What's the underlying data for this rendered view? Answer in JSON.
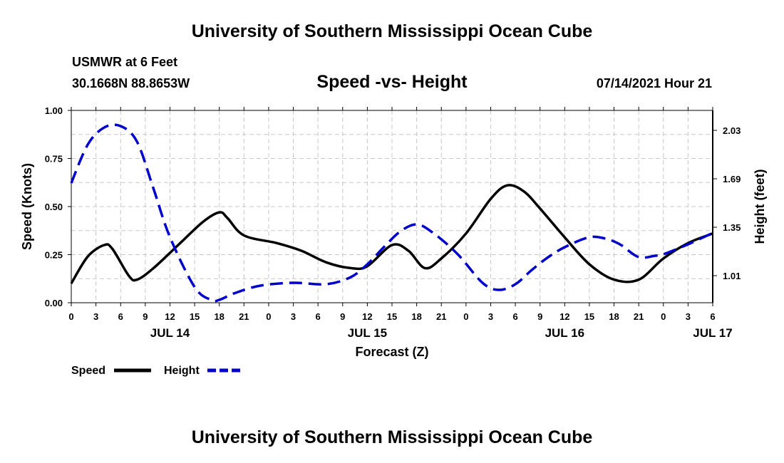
{
  "header": {
    "title": "University of Southern Mississippi Ocean Cube",
    "station": "USMWR at 6 Feet",
    "coords": "30.1668N  88.8653W",
    "subtitle": "Speed -vs- Height",
    "datetime": "07/14/2021 Hour 21"
  },
  "footer": {
    "title": "University of Southern Mississippi Ocean Cube"
  },
  "colors": {
    "speed": "#000000",
    "height": "#0000cc",
    "grid": "#c8c8c8"
  },
  "chart_data": {
    "type": "line",
    "title": "Speed -vs- Height",
    "xlabel": "Forecast (Z)",
    "ylabel": "Speed (Knots)",
    "y2label": "Height (feet)",
    "xlim": [
      0,
      78
    ],
    "ylim": [
      0,
      1
    ],
    "y2lim": [
      0.82,
      2.17
    ],
    "x_ticks": [
      0,
      3,
      6,
      9,
      12,
      15,
      18,
      21,
      24,
      27,
      30,
      33,
      36,
      39,
      42,
      45,
      48,
      51,
      54,
      57,
      60,
      63,
      66,
      69,
      72,
      75,
      78
    ],
    "x_tick_labels": [
      "0",
      "3",
      "6",
      "9",
      "12",
      "15",
      "18",
      "21",
      "0",
      "3",
      "6",
      "9",
      "12",
      "15",
      "18",
      "21",
      "0",
      "3",
      "6",
      "9",
      "12",
      "15",
      "18",
      "21",
      "0",
      "3",
      "6"
    ],
    "date_labels": [
      {
        "x": 12,
        "label": "JUL 14"
      },
      {
        "x": 36,
        "label": "JUL 15"
      },
      {
        "x": 60,
        "label": "JUL 16"
      },
      {
        "x": 78,
        "label": "JUL 17"
      }
    ],
    "y_ticks": [
      "0.00",
      "0.25",
      "0.50",
      "0.75",
      "1.00"
    ],
    "y2_ticks": [
      "1.01",
      "1.35",
      "1.69",
      "2.03"
    ],
    "series": [
      {
        "name": "Speed",
        "axis": "left",
        "style": "solid",
        "x": [
          0,
          2,
          4,
          5,
          7,
          8,
          10,
          13,
          16,
          18,
          19,
          21,
          25,
          28,
          31,
          34,
          36,
          39,
          41,
          43,
          45,
          48,
          51,
          53,
          55,
          57,
          60,
          63,
          66,
          69,
          72,
          75,
          78
        ],
        "values": [
          0.1,
          0.24,
          0.3,
          0.28,
          0.14,
          0.12,
          0.18,
          0.3,
          0.42,
          0.47,
          0.44,
          0.35,
          0.31,
          0.27,
          0.21,
          0.18,
          0.19,
          0.3,
          0.27,
          0.18,
          0.23,
          0.36,
          0.54,
          0.61,
          0.58,
          0.49,
          0.34,
          0.2,
          0.12,
          0.12,
          0.23,
          0.31,
          0.36
        ]
      },
      {
        "name": "Height",
        "axis": "right",
        "style": "dashed",
        "x": [
          0,
          2,
          4,
          6,
          8,
          10,
          12,
          15,
          17,
          18,
          20,
          23,
          27,
          31,
          34,
          36,
          38,
          40,
          42,
          44,
          47,
          50,
          52,
          54,
          56,
          58,
          60,
          63,
          65,
          66,
          67,
          69,
          71,
          72,
          75,
          78
        ],
        "values": [
          1.66,
          1.93,
          2.05,
          2.06,
          1.95,
          1.62,
          1.28,
          0.93,
          0.84,
          0.84,
          0.89,
          0.94,
          0.96,
          0.95,
          1.0,
          1.09,
          1.21,
          1.32,
          1.37,
          1.31,
          1.16,
          0.96,
          0.91,
          0.95,
          1.05,
          1.14,
          1.21,
          1.28,
          1.27,
          1.25,
          1.22,
          1.14,
          1.15,
          1.16,
          1.23,
          1.31
        ]
      }
    ],
    "legend": [
      {
        "label": "Speed",
        "style": "solid"
      },
      {
        "label": "Height",
        "style": "dashed"
      }
    ]
  }
}
